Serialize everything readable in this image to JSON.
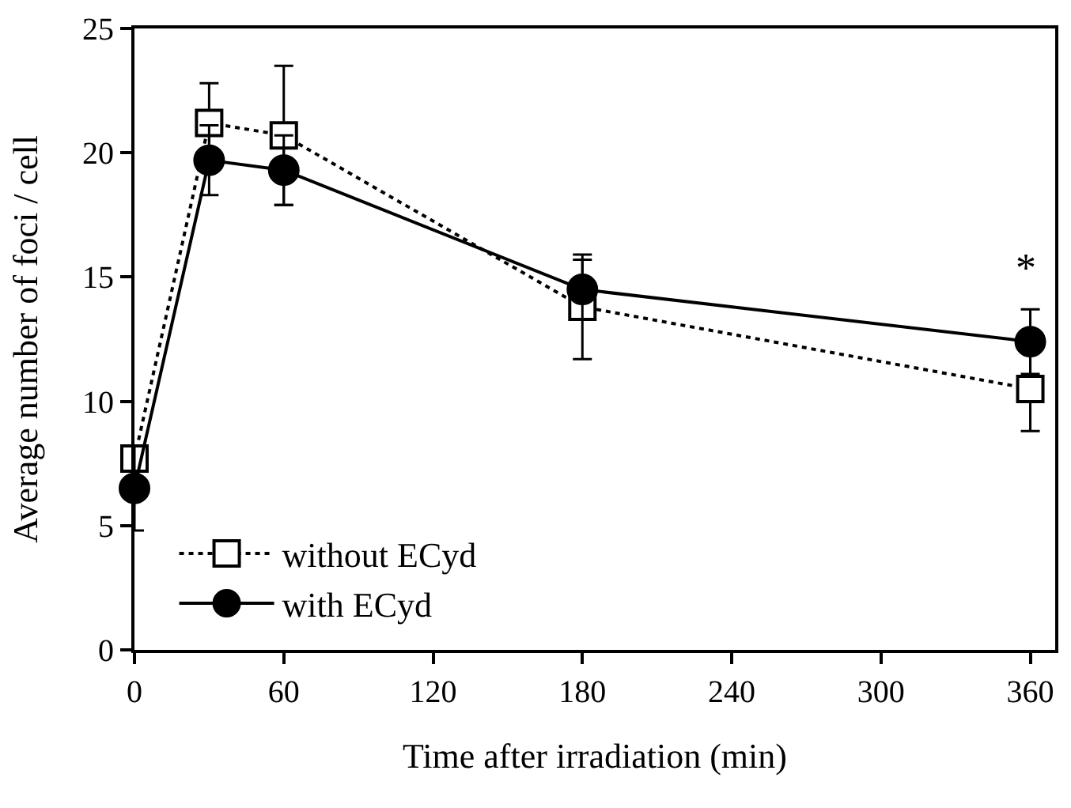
{
  "chart_data": {
    "type": "line",
    "xlabel": "Time after irradiation (min)",
    "ylabel": "Average number of foci / cell",
    "x": [
      0,
      30,
      60,
      180,
      360
    ],
    "series": [
      {
        "name": "without ECyd",
        "color": "#000000",
        "values": [
          7.7,
          21.2,
          20.7,
          13.8,
          10.5
        ],
        "errors": [
          null,
          1.6,
          2.8,
          2.1,
          1.7
        ],
        "marker": "square",
        "line_style": "dotted"
      },
      {
        "name": "with ECyd",
        "color": "#000000",
        "values": [
          6.5,
          19.7,
          19.3,
          14.5,
          12.4
        ],
        "errors": [
          1.7,
          1.4,
          1.4,
          1.2,
          1.3
        ],
        "marker": "circle",
        "line_style": "solid"
      }
    ],
    "xlim": [
      0,
      370
    ],
    "xticks": [
      0,
      60,
      120,
      180,
      240,
      300,
      360
    ],
    "ylim": [
      0,
      25
    ],
    "yticks": [
      0,
      5,
      10,
      15,
      20,
      25
    ],
    "annotations": [
      "*"
    ],
    "grid": false,
    "legend": "bottom left"
  }
}
